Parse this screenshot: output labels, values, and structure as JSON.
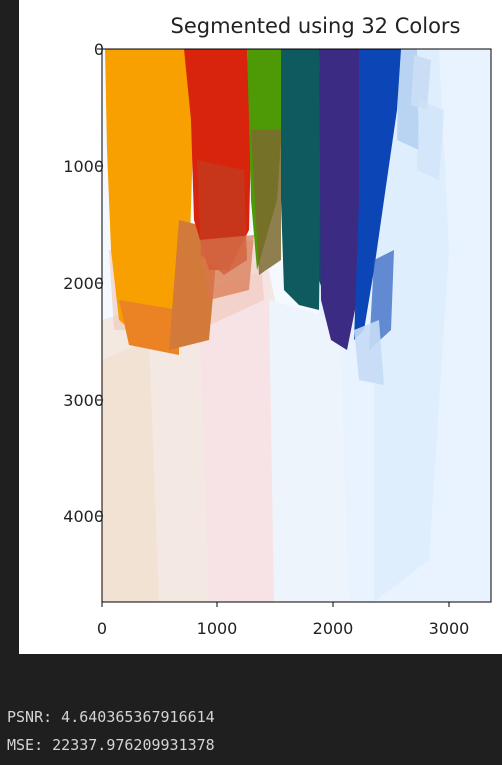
{
  "chart_data": {
    "type": "image",
    "title": "Segmented using 32 Colors",
    "xlabel": "",
    "ylabel": "",
    "xlim": [
      0,
      3400
    ],
    "ylim": [
      4800,
      0
    ],
    "xticks": [
      "0",
      "1000",
      "2000",
      "3000"
    ],
    "yticks": [
      "0",
      "1000",
      "2000",
      "3000",
      "4000"
    ],
    "grid": false
  },
  "output": {
    "psnr_line": "PSNR: 4.640365367916614",
    "mse_line": "MSE: 22337.976209931378"
  },
  "colors": {
    "orange": "#f7a000",
    "red": "#d8240d",
    "green": "#4e9a06",
    "teal": "#0f5a5f",
    "indigo": "#3b2b82",
    "blue": "#0c46b6",
    "pale_blue": "#e3f0fe",
    "pale_pink": "#f5e6e5"
  }
}
